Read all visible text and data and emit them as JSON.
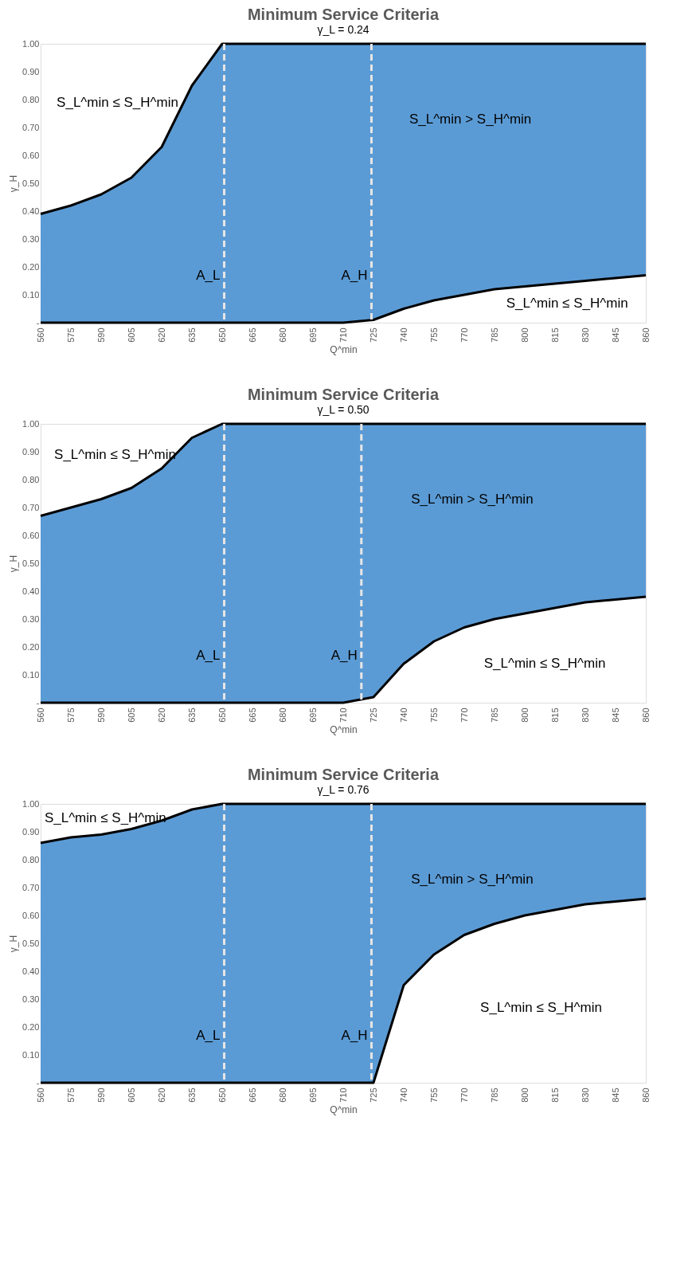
{
  "chart_data": [
    {
      "type": "area",
      "stacked": true,
      "title": "Minimum  Service Criteria",
      "subtitle": "γ_L = 0.24",
      "xlabel": "Q^min",
      "ylabel": "γ_H",
      "x": [
        560,
        575,
        590,
        605,
        620,
        635,
        650,
        665,
        680,
        695,
        710,
        725,
        740,
        755,
        770,
        785,
        800,
        815,
        830,
        845,
        860
      ],
      "xlim": [
        560,
        860
      ],
      "xticks": [
        560,
        575,
        590,
        605,
        620,
        635,
        650,
        665,
        680,
        695,
        710,
        725,
        740,
        755,
        770,
        785,
        800,
        815,
        830,
        845,
        860
      ],
      "ylim": [
        0,
        1
      ],
      "yticks": [
        {
          "value": 0,
          "label": "-"
        },
        {
          "value": 0.1,
          "label": "0.10"
        },
        {
          "value": 0.2,
          "label": "0.20"
        },
        {
          "value": 0.3,
          "label": "0.30"
        },
        {
          "value": 0.4,
          "label": "0.40"
        },
        {
          "value": 0.5,
          "label": "0.50"
        },
        {
          "value": 0.6,
          "label": "0.60"
        },
        {
          "value": 0.7,
          "label": "0.70"
        },
        {
          "value": 0.8,
          "label": "0.80"
        },
        {
          "value": 0.9,
          "label": "0.90"
        },
        {
          "value": 1,
          "label": "1.00"
        }
      ],
      "series": [
        {
          "color": "#ffffff",
          "values": [
            0,
            0,
            0,
            0,
            0,
            0,
            0,
            0,
            0,
            0,
            0,
            0.01,
            0.05,
            0.08,
            0.1,
            0.12,
            0.13,
            0.14,
            0.15,
            0.16,
            0.17
          ]
        },
        {
          "color": "#5b9bd5",
          "values": [
            0.39,
            0.42,
            0.46,
            0.52,
            0.63,
            0.85,
            1,
            1,
            1,
            1,
            1,
            0.99,
            0.95,
            0.92,
            0.9,
            0.88,
            0.87,
            0.86,
            0.85,
            0.84,
            0.83
          ]
        }
      ],
      "ref_lines": [
        {
          "axis": "x",
          "value": 651,
          "label": "A_L",
          "color": "#e7e6e6",
          "line_style": "dashed"
        },
        {
          "axis": "x",
          "value": 724,
          "label": "A_H",
          "color": "#e7e6e6",
          "line_style": "dashed"
        }
      ],
      "annotations": [
        "S_L^min ≤ S_H^min",
        "S_L^min > S_H^min",
        "S_L^min ≤ S_H^min"
      ],
      "grid": false
    },
    {
      "type": "area",
      "stacked": true,
      "title": "Minimum  Service Criteria",
      "subtitle": "γ_L = 0.50",
      "xlabel": "Q^min",
      "ylabel": "γ_H",
      "x": [
        560,
        575,
        590,
        605,
        620,
        635,
        650,
        665,
        680,
        695,
        710,
        725,
        740,
        755,
        770,
        785,
        800,
        815,
        830,
        845,
        860
      ],
      "xlim": [
        560,
        860
      ],
      "xticks": [
        560,
        575,
        590,
        605,
        620,
        635,
        650,
        665,
        680,
        695,
        710,
        725,
        740,
        755,
        770,
        785,
        800,
        815,
        830,
        845,
        860
      ],
      "ylim": [
        0,
        1
      ],
      "yticks": [
        {
          "value": 0,
          "label": "-"
        },
        {
          "value": 0.1,
          "label": "0.10"
        },
        {
          "value": 0.2,
          "label": "0.20"
        },
        {
          "value": 0.3,
          "label": "0.30"
        },
        {
          "value": 0.4,
          "label": "0.40"
        },
        {
          "value": 0.5,
          "label": "0.50"
        },
        {
          "value": 0.6,
          "label": "0.60"
        },
        {
          "value": 0.7,
          "label": "0.70"
        },
        {
          "value": 0.8,
          "label": "0.80"
        },
        {
          "value": 0.9,
          "label": "0.90"
        },
        {
          "value": 1,
          "label": "1.00"
        }
      ],
      "series": [
        {
          "color": "#ffffff",
          "values": [
            0,
            0,
            0,
            0,
            0,
            0,
            0,
            0,
            0,
            0,
            0,
            0.02,
            0.14,
            0.22,
            0.27,
            0.3,
            0.32,
            0.34,
            0.36,
            0.37,
            0.38
          ]
        },
        {
          "color": "#5b9bd5",
          "values": [
            0.67,
            0.7,
            0.73,
            0.77,
            0.84,
            0.95,
            1,
            1,
            1,
            1,
            1,
            0.98,
            0.86,
            0.78,
            0.73,
            0.7,
            0.68,
            0.66,
            0.64,
            0.63,
            0.62
          ]
        }
      ],
      "ref_lines": [
        {
          "axis": "x",
          "value": 651,
          "label": "A_L",
          "color": "#e7e6e6",
          "line_style": "dashed"
        },
        {
          "axis": "x",
          "value": 719,
          "label": "A_H",
          "color": "#e7e6e6",
          "line_style": "dashed"
        }
      ],
      "annotations": [
        "S_L^min ≤ S_H^min",
        "S_L^min > S_H^min",
        "S_L^min ≤ S_H^min"
      ],
      "grid": false
    },
    {
      "type": "area",
      "stacked": true,
      "title": "Minimum  Service Criteria",
      "subtitle": "γ_L = 0.76",
      "xlabel": "Q^min",
      "ylabel": "γ_H",
      "x": [
        560,
        575,
        590,
        605,
        620,
        635,
        650,
        665,
        680,
        695,
        710,
        725,
        740,
        755,
        770,
        785,
        800,
        815,
        830,
        845,
        860
      ],
      "xlim": [
        560,
        860
      ],
      "xticks": [
        560,
        575,
        590,
        605,
        620,
        635,
        650,
        665,
        680,
        695,
        710,
        725,
        740,
        755,
        770,
        785,
        800,
        815,
        830,
        845,
        860
      ],
      "ylim": [
        0,
        1
      ],
      "yticks": [
        {
          "value": 0,
          "label": "-"
        },
        {
          "value": 0.1,
          "label": "0.10"
        },
        {
          "value": 0.2,
          "label": "0.20"
        },
        {
          "value": 0.3,
          "label": "0.30"
        },
        {
          "value": 0.4,
          "label": "0.40"
        },
        {
          "value": 0.5,
          "label": "0.50"
        },
        {
          "value": 0.6,
          "label": "0.60"
        },
        {
          "value": 0.7,
          "label": "0.70"
        },
        {
          "value": 0.8,
          "label": "0.80"
        },
        {
          "value": 0.9,
          "label": "0.90"
        },
        {
          "value": 1,
          "label": "1.00"
        }
      ],
      "series": [
        {
          "color": "#ffffff",
          "values": [
            0,
            0,
            0,
            0,
            0,
            0,
            0,
            0,
            0,
            0,
            0,
            0,
            0.35,
            0.46,
            0.53,
            0.57,
            0.6,
            0.62,
            0.64,
            0.65,
            0.66
          ]
        },
        {
          "color": "#5b9bd5",
          "values": [
            0.86,
            0.88,
            0.89,
            0.91,
            0.94,
            0.98,
            1,
            1,
            1,
            1,
            1,
            1,
            0.65,
            0.54,
            0.47,
            0.43,
            0.4,
            0.38,
            0.36,
            0.35,
            0.34
          ]
        }
      ],
      "ref_lines": [
        {
          "axis": "x",
          "value": 651,
          "label": "A_L",
          "color": "#e7e6e6",
          "line_style": "dashed"
        },
        {
          "axis": "x",
          "value": 724,
          "label": "A_H",
          "color": "#e7e6e6",
          "line_style": "dashed"
        }
      ],
      "annotations": [
        "S_L^min ≤ S_H^min",
        "S_L^min > S_H^min",
        "S_L^min ≤ S_H^min"
      ],
      "grid": false
    }
  ]
}
